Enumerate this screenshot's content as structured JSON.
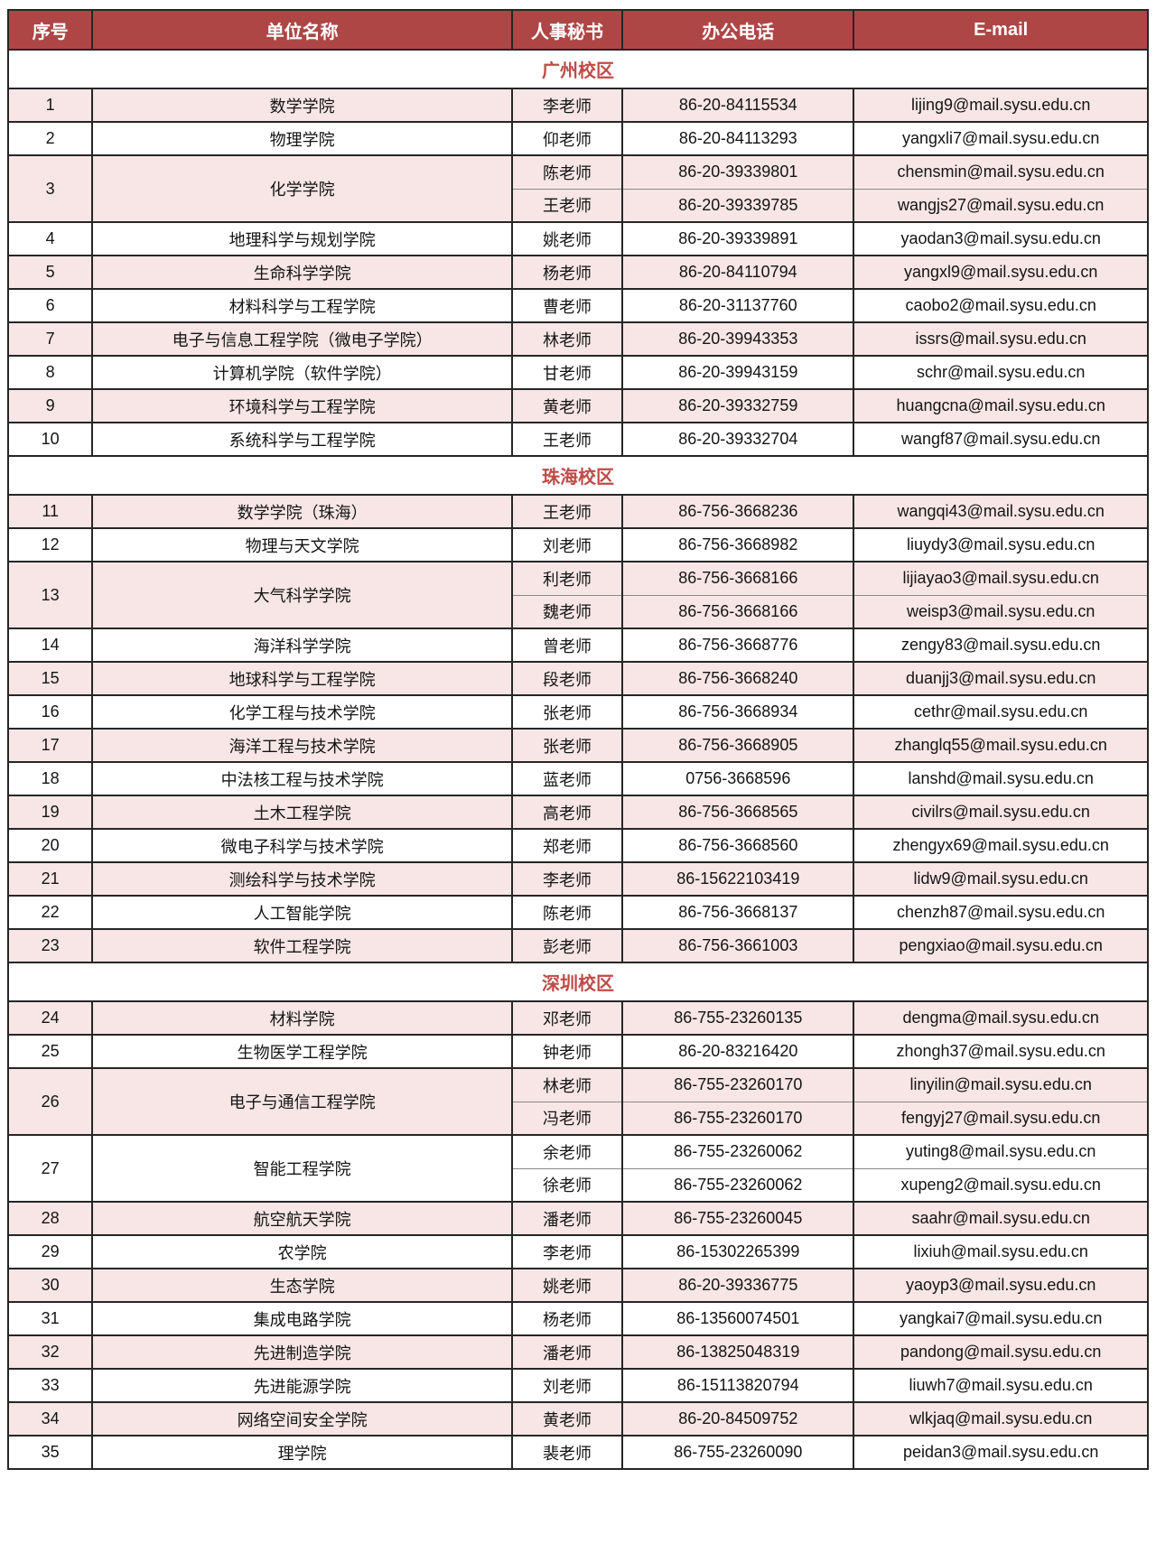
{
  "colors": {
    "header_bg": "#AE4646",
    "header_text": "#FFFFFF",
    "section_text": "#BE4B48",
    "row_pink": "#F7E6E5",
    "border": "#262626"
  },
  "table": {
    "columns": [
      "序号",
      "单位名称",
      "人事秘书",
      "办公电话",
      "E-mail"
    ],
    "sections": [
      {
        "title": "广州校区",
        "entries": [
          {
            "no": "1",
            "unit": "数学学院",
            "contacts": [
              {
                "name": "李老师",
                "phone": "86-20-84115534",
                "email": "lijing9@mail.sysu.edu.cn"
              }
            ]
          },
          {
            "no": "2",
            "unit": "物理学院",
            "contacts": [
              {
                "name": "仰老师",
                "phone": "86-20-84113293",
                "email": "yangxli7@mail.sysu.edu.cn"
              }
            ]
          },
          {
            "no": "3",
            "unit": "化学学院",
            "contacts": [
              {
                "name": "陈老师",
                "phone": "86-20-39339801",
                "email": "chensmin@mail.sysu.edu.cn"
              },
              {
                "name": "王老师",
                "phone": "86-20-39339785",
                "email": "wangjs27@mail.sysu.edu.cn"
              }
            ]
          },
          {
            "no": "4",
            "unit": "地理科学与规划学院",
            "contacts": [
              {
                "name": "姚老师",
                "phone": "86-20-39339891",
                "email": "yaodan3@mail.sysu.edu.cn"
              }
            ]
          },
          {
            "no": "5",
            "unit": "生命科学学院",
            "contacts": [
              {
                "name": "杨老师",
                "phone": "86-20-84110794",
                "email": "yangxl9@mail.sysu.edu.cn"
              }
            ]
          },
          {
            "no": "6",
            "unit": "材料科学与工程学院",
            "contacts": [
              {
                "name": "曹老师",
                "phone": "86-20-31137760",
                "email": "caobo2@mail.sysu.edu.cn"
              }
            ]
          },
          {
            "no": "7",
            "unit": "电子与信息工程学院（微电子学院）",
            "contacts": [
              {
                "name": "林老师",
                "phone": "86-20-39943353",
                "email": "issrs@mail.sysu.edu.cn"
              }
            ]
          },
          {
            "no": "8",
            "unit": "计算机学院（软件学院）",
            "contacts": [
              {
                "name": "甘老师",
                "phone": "86-20-39943159",
                "email": "schr@mail.sysu.edu.cn"
              }
            ]
          },
          {
            "no": "9",
            "unit": "环境科学与工程学院",
            "contacts": [
              {
                "name": "黄老师",
                "phone": "86-20-39332759",
                "email": "huangcna@mail.sysu.edu.cn"
              }
            ]
          },
          {
            "no": "10",
            "unit": "系统科学与工程学院",
            "contacts": [
              {
                "name": "王老师",
                "phone": "86-20-39332704",
                "email": "wangf87@mail.sysu.edu.cn"
              }
            ]
          }
        ]
      },
      {
        "title": "珠海校区",
        "entries": [
          {
            "no": "11",
            "unit": "数学学院（珠海）",
            "contacts": [
              {
                "name": "王老师",
                "phone": "86-756-3668236",
                "email": "wangqi43@mail.sysu.edu.cn"
              }
            ]
          },
          {
            "no": "12",
            "unit": "物理与天文学院",
            "contacts": [
              {
                "name": "刘老师",
                "phone": "86-756-3668982",
                "email": "liuydy3@mail.sysu.edu.cn"
              }
            ]
          },
          {
            "no": "13",
            "unit": "大气科学学院",
            "contacts": [
              {
                "name": "利老师",
                "phone": "86-756-3668166",
                "email": "lijiayao3@mail.sysu.edu.cn"
              },
              {
                "name": "魏老师",
                "phone": "86-756-3668166",
                "email": "weisp3@mail.sysu.edu.cn"
              }
            ]
          },
          {
            "no": "14",
            "unit": "海洋科学学院",
            "contacts": [
              {
                "name": "曾老师",
                "phone": "86-756-3668776",
                "email": "zengy83@mail.sysu.edu.cn"
              }
            ]
          },
          {
            "no": "15",
            "unit": "地球科学与工程学院",
            "contacts": [
              {
                "name": "段老师",
                "phone": "86-756-3668240",
                "email": "duanjj3@mail.sysu.edu.cn"
              }
            ]
          },
          {
            "no": "16",
            "unit": "化学工程与技术学院",
            "contacts": [
              {
                "name": "张老师",
                "phone": "86-756-3668934",
                "email": "cethr@mail.sysu.edu.cn"
              }
            ]
          },
          {
            "no": "17",
            "unit": "海洋工程与技术学院",
            "contacts": [
              {
                "name": "张老师",
                "phone": "86-756-3668905",
                "email": "zhanglq55@mail.sysu.edu.cn"
              }
            ]
          },
          {
            "no": "18",
            "unit": "中法核工程与技术学院",
            "contacts": [
              {
                "name": "蓝老师",
                "phone": "0756-3668596",
                "email": "lanshd@mail.sysu.edu.cn"
              }
            ]
          },
          {
            "no": "19",
            "unit": "土木工程学院",
            "contacts": [
              {
                "name": "高老师",
                "phone": "86-756-3668565",
                "email": "civilrs@mail.sysu.edu.cn"
              }
            ]
          },
          {
            "no": "20",
            "unit": "微电子科学与技术学院",
            "contacts": [
              {
                "name": "郑老师",
                "phone": "86-756-3668560",
                "email": "zhengyx69@mail.sysu.edu.cn"
              }
            ]
          },
          {
            "no": "21",
            "unit": "测绘科学与技术学院",
            "contacts": [
              {
                "name": "李老师",
                "phone": "86-15622103419",
                "email": "lidw9@mail.sysu.edu.cn"
              }
            ]
          },
          {
            "no": "22",
            "unit": "人工智能学院",
            "contacts": [
              {
                "name": "陈老师",
                "phone": "86-756-3668137",
                "email": "chenzh87@mail.sysu.edu.cn"
              }
            ]
          },
          {
            "no": "23",
            "unit": "软件工程学院",
            "contacts": [
              {
                "name": "彭老师",
                "phone": "86-756-3661003",
                "email": "pengxiao@mail.sysu.edu.cn"
              }
            ]
          }
        ]
      },
      {
        "title": "深圳校区",
        "entries": [
          {
            "no": "24",
            "unit": "材料学院",
            "contacts": [
              {
                "name": "邓老师",
                "phone": "86-755-23260135",
                "email": "dengma@mail.sysu.edu.cn"
              }
            ]
          },
          {
            "no": "25",
            "unit": "生物医学工程学院",
            "contacts": [
              {
                "name": "钟老师",
                "phone": "86-20-83216420",
                "email": "zhongh37@mail.sysu.edu.cn"
              }
            ]
          },
          {
            "no": "26",
            "unit": "电子与通信工程学院",
            "contacts": [
              {
                "name": "林老师",
                "phone": "86-755-23260170",
                "email": "linyilin@mail.sysu.edu.cn"
              },
              {
                "name": "冯老师",
                "phone": "86-755-23260170",
                "email": "fengyj27@mail.sysu.edu.cn"
              }
            ]
          },
          {
            "no": "27",
            "unit": "智能工程学院",
            "contacts": [
              {
                "name": "余老师",
                "phone": "86-755-23260062",
                "email": "yuting8@mail.sysu.edu.cn"
              },
              {
                "name": "徐老师",
                "phone": "86-755-23260062",
                "email": "xupeng2@mail.sysu.edu.cn"
              }
            ]
          },
          {
            "no": "28",
            "unit": "航空航天学院",
            "contacts": [
              {
                "name": "潘老师",
                "phone": "86-755-23260045",
                "email": "saahr@mail.sysu.edu.cn"
              }
            ]
          },
          {
            "no": "29",
            "unit": "农学院",
            "contacts": [
              {
                "name": "李老师",
                "phone": "86-15302265399",
                "email": "lixiuh@mail.sysu.edu.cn"
              }
            ]
          },
          {
            "no": "30",
            "unit": "生态学院",
            "contacts": [
              {
                "name": "姚老师",
                "phone": "86-20-39336775",
                "email": "yaoyp3@mail.sysu.edu.cn"
              }
            ]
          },
          {
            "no": "31",
            "unit": "集成电路学院",
            "contacts": [
              {
                "name": "杨老师",
                "phone": "86-13560074501",
                "email": "yangkai7@mail.sysu.edu.cn"
              }
            ]
          },
          {
            "no": "32",
            "unit": "先进制造学院",
            "contacts": [
              {
                "name": "潘老师",
                "phone": "86-13825048319",
                "email": "pandong@mail.sysu.edu.cn"
              }
            ]
          },
          {
            "no": "33",
            "unit": "先进能源学院",
            "contacts": [
              {
                "name": "刘老师",
                "phone": "86-15113820794",
                "email": "liuwh7@mail.sysu.edu.cn"
              }
            ]
          },
          {
            "no": "34",
            "unit": "网络空间安全学院",
            "contacts": [
              {
                "name": "黄老师",
                "phone": "86-20-84509752",
                "email": "wlkjaq@mail.sysu.edu.cn"
              }
            ]
          },
          {
            "no": "35",
            "unit": "理学院",
            "contacts": [
              {
                "name": "裴老师",
                "phone": "86-755-23260090",
                "email": "peidan3@mail.sysu.edu.cn"
              }
            ]
          }
        ]
      }
    ]
  }
}
